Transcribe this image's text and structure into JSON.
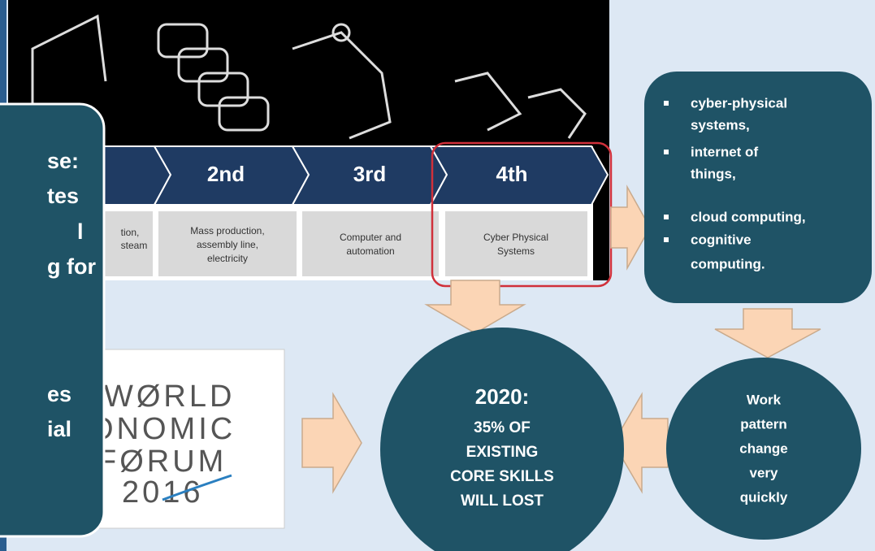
{
  "overlay": {
    "lines": [
      "se:",
      "tes",
      "l",
      "g for",
      "es",
      "ial"
    ]
  },
  "partial_stage": {
    "description": [
      "tion,",
      "steam"
    ]
  },
  "stages": [
    {
      "label": "2nd",
      "description": [
        "Mass production,",
        "assembly line,",
        "electricity"
      ]
    },
    {
      "label": "3rd",
      "description": [
        "Computer and",
        "automation"
      ]
    },
    {
      "label": "4th",
      "description": [
        "Cyber Physical",
        "Systems"
      ]
    }
  ],
  "technologies": [
    "cyber-physical",
    "systems,",
    "internet of",
    "things,",
    "cloud computing,",
    "cognitive",
    "computing."
  ],
  "forecast": {
    "lines": [
      "2020:",
      "35% OF",
      "EXISTING",
      "CORE SKILLS",
      "WILL LOST"
    ]
  },
  "work_change": {
    "lines": [
      "Work",
      "pattern",
      "change",
      "very",
      "quickly"
    ]
  },
  "logo": {
    "lines": [
      "WØRLD",
      "ONOMIC",
      "FØRUM",
      "2016"
    ]
  }
}
